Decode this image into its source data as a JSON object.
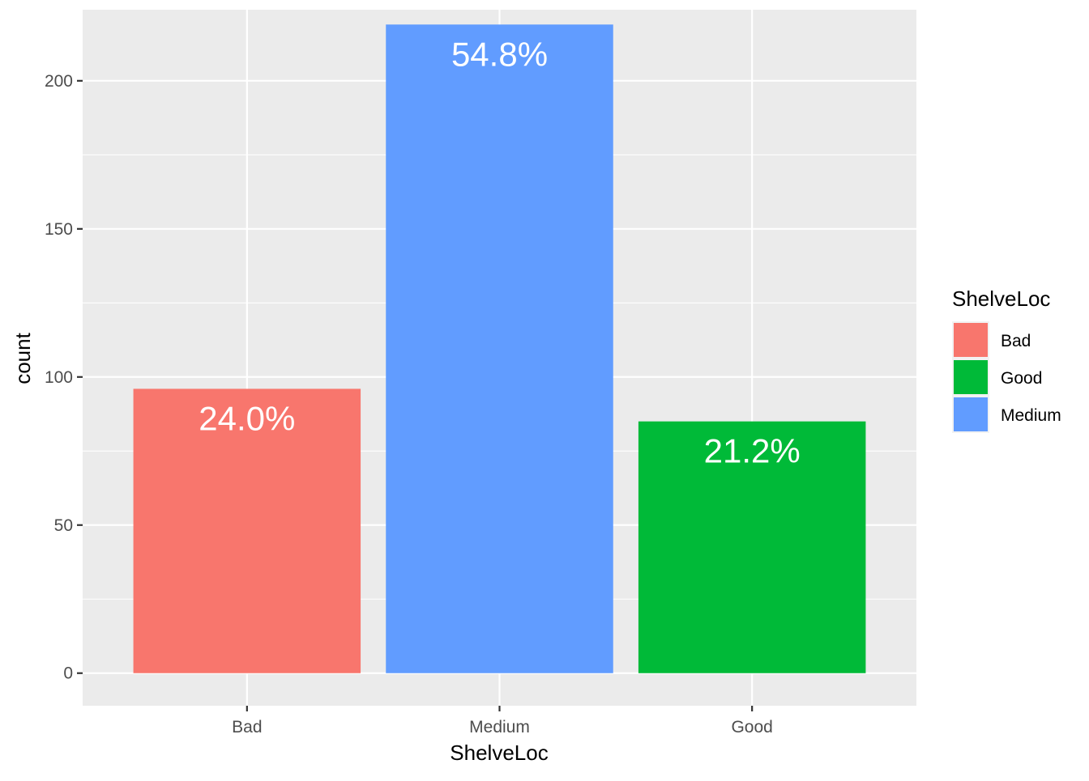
{
  "chart_data": {
    "type": "bar",
    "title": "",
    "xlabel": "ShelveLoc",
    "ylabel": "count",
    "categories": [
      "Bad",
      "Medium",
      "Good"
    ],
    "values": [
      96,
      219,
      85
    ],
    "data_labels": [
      "24.0%",
      "54.8%",
      "21.2%"
    ],
    "ylim": [
      -11,
      224
    ],
    "y_ticks": [
      0,
      50,
      100,
      150,
      200
    ],
    "y_tick_labels": [
      "0",
      "50",
      "100",
      "150",
      "200"
    ],
    "grid": true,
    "legend": {
      "title": "ShelveLoc",
      "placement": "right",
      "items": [
        {
          "label": "Bad",
          "color": "#F8766D"
        },
        {
          "label": "Good",
          "color": "#00BA38"
        },
        {
          "label": "Medium",
          "color": "#619CFF"
        }
      ]
    },
    "bar_colors": {
      "Bad": "#F8766D",
      "Medium": "#619CFF",
      "Good": "#00BA38"
    },
    "panel_background": "#EBEBEB",
    "grid_color": "#FFFFFF"
  }
}
